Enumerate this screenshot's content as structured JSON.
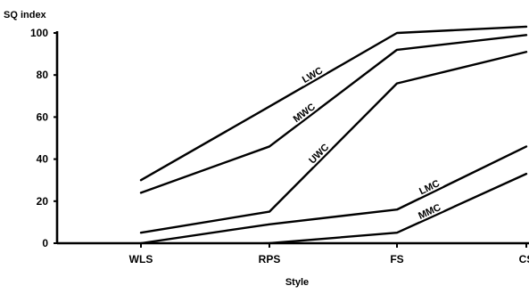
{
  "chart_data": {
    "type": "line",
    "ylabel": "SQ index",
    "xlabel": "Style",
    "categories": [
      "WLS",
      "RPS",
      "FS",
      "CS"
    ],
    "ylim": [
      0,
      100
    ],
    "yticks": [
      "0",
      "20",
      "40",
      "60",
      "80",
      "100"
    ],
    "grid": false,
    "series": [
      {
        "name": "LWC",
        "values": [
          30,
          65,
          100,
          103
        ]
      },
      {
        "name": "MWC",
        "values": [
          24,
          46,
          92,
          99
        ]
      },
      {
        "name": "UWC",
        "values": [
          5,
          15,
          76,
          91
        ]
      },
      {
        "name": "LMC",
        "values": [
          0,
          9,
          16,
          46
        ]
      },
      {
        "name": "MMC",
        "values": [
          -2,
          0,
          5,
          33
        ]
      }
    ]
  }
}
